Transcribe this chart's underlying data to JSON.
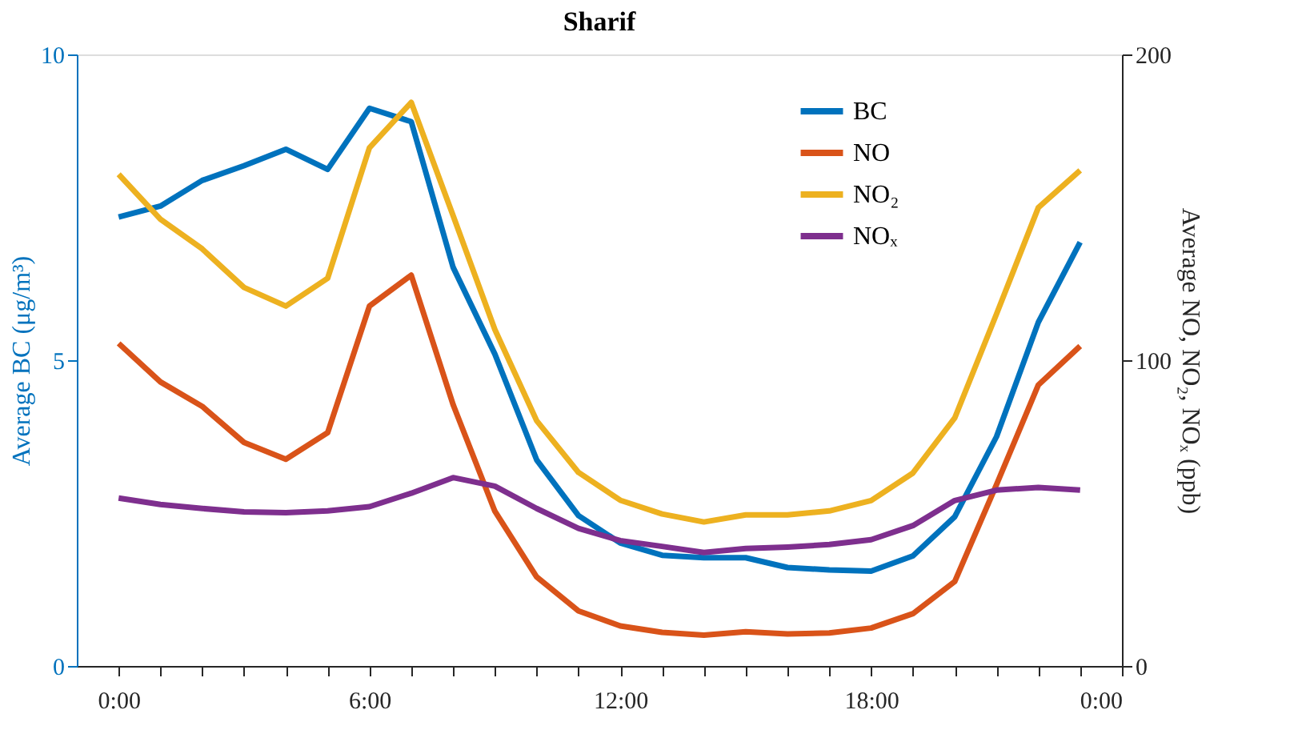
{
  "chart_data": {
    "type": "line",
    "title": "Sharif",
    "ylabel": "Average BC (μg/m³)",
    "y2label": "Average NO, NO₂, NOₓ (ppb)",
    "x": [
      0,
      1,
      2,
      3,
      4,
      5,
      6,
      7,
      8,
      9,
      10,
      11,
      12,
      13,
      14,
      15,
      16,
      17,
      18,
      19,
      20,
      21,
      22,
      23
    ],
    "xlim": [
      -1,
      24
    ],
    "xticks": [
      {
        "value": 0,
        "label": "0:00"
      },
      {
        "value": 1,
        "label": null
      },
      {
        "value": 2,
        "label": null
      },
      {
        "value": 3,
        "label": null
      },
      {
        "value": 4,
        "label": null
      },
      {
        "value": 5,
        "label": null
      },
      {
        "value": 6,
        "label": "6:00"
      },
      {
        "value": 7,
        "label": null
      },
      {
        "value": 8,
        "label": null
      },
      {
        "value": 9,
        "label": null
      },
      {
        "value": 10,
        "label": null
      },
      {
        "value": 11,
        "label": null
      },
      {
        "value": 12,
        "label": "12:00"
      },
      {
        "value": 13,
        "label": null
      },
      {
        "value": 14,
        "label": null
      },
      {
        "value": 15,
        "label": null
      },
      {
        "value": 16,
        "label": null
      },
      {
        "value": 17,
        "label": null
      },
      {
        "value": 18,
        "label": "18:00"
      },
      {
        "value": 19,
        "label": null
      },
      {
        "value": 20,
        "label": null
      },
      {
        "value": 21,
        "label": null
      },
      {
        "value": 22,
        "label": null
      },
      {
        "value": 23,
        "label": null
      },
      {
        "value": 24,
        "label": "0:00"
      }
    ],
    "ylim": [
      0,
      10
    ],
    "yticks": [
      0,
      5,
      10
    ],
    "y2lim": [
      0,
      200
    ],
    "y2ticks": [
      0,
      100,
      200
    ],
    "grid": false,
    "legend": "top right",
    "marker": "none",
    "line_style": "solid",
    "series": [
      {
        "name": "BC",
        "color": "#0072bd",
        "axis": "y",
        "values": [
          7.34,
          7.52,
          7.94,
          8.18,
          8.45,
          8.12,
          9.12,
          8.9,
          6.52,
          5.1,
          3.37,
          2.46,
          2.01,
          1.81,
          1.77,
          1.77,
          1.61,
          1.57,
          1.55,
          1.8,
          2.44,
          3.75,
          5.62,
          6.93
        ]
      },
      {
        "name": "NO",
        "color": "#d95319",
        "axis": "y2",
        "values": [
          105.5,
          92.9,
          84.9,
          73.1,
          67.6,
          76.3,
          117.7,
          127.8,
          85.5,
          50.6,
          29.1,
          18.0,
          13.1,
          11.0,
          10.1,
          11.2,
          10.5,
          10.8,
          12.4,
          17.1,
          27.6,
          59.3,
          91.9,
          104.6
        ]
      },
      {
        "name": "NO₂",
        "color": "#edb120",
        "axis": "y2",
        "values": [
          160.8,
          146.1,
          136.4,
          123.8,
          117.7,
          126.8,
          169.5,
          184.3,
          147.3,
          110.0,
          80.2,
          63.3,
          54.2,
          49.7,
          47.1,
          49.4,
          49.4,
          50.7,
          54.1,
          63.1,
          81.1,
          115.1,
          149.9,
          162.1
        ]
      },
      {
        "name": "NOₓ",
        "color": "#7e2f8e",
        "axis": "y2",
        "values": [
          54.9,
          52.8,
          51.5,
          50.4,
          50.1,
          50.7,
          52.1,
          56.5,
          61.6,
          58.8,
          51.5,
          45.0,
          41.0,
          39.1,
          37.1,
          38.4,
          38.9,
          39.7,
          41.3,
          45.9,
          54.1,
          57.5,
          58.4,
          57.5
        ]
      }
    ]
  }
}
